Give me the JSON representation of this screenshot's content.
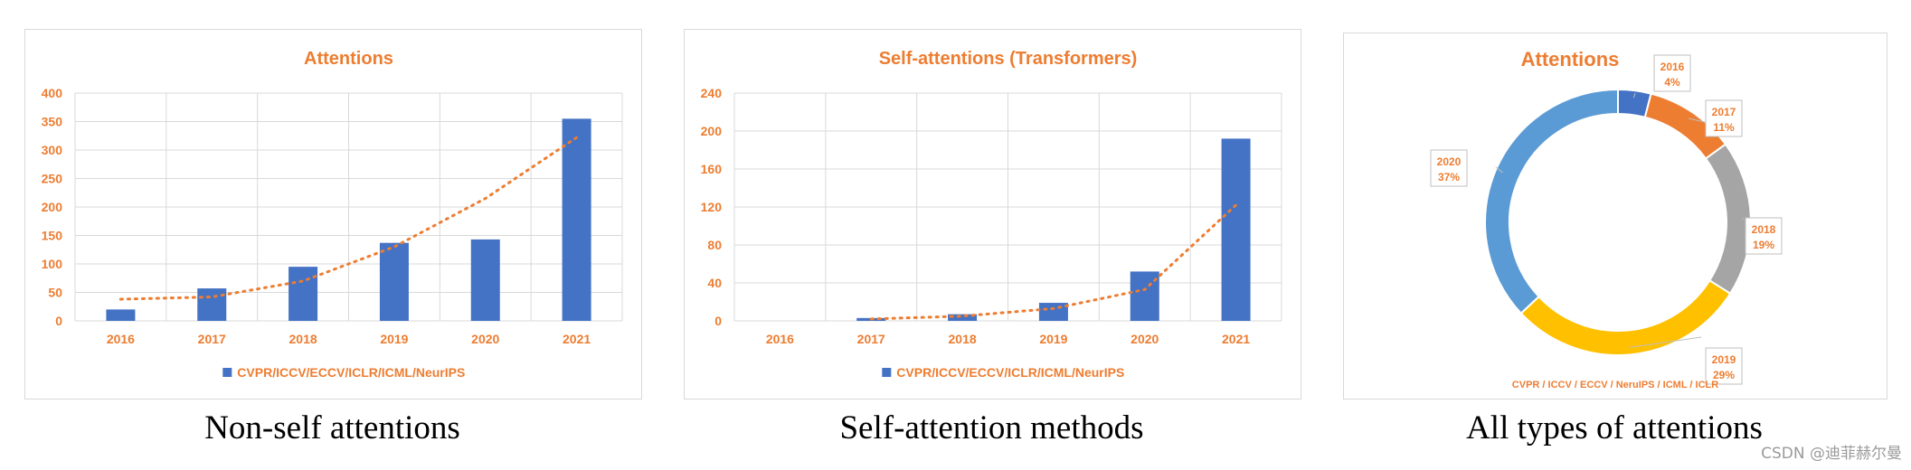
{
  "colors": {
    "accent": "#ED7D31",
    "bar": "#4472C4",
    "grid": "#d9d9d9",
    "label": "#ED7D31"
  },
  "chart_data": [
    {
      "type": "bar",
      "title": "Attentions",
      "categories": [
        "2016",
        "2017",
        "2018",
        "2019",
        "2020",
        "2021"
      ],
      "series": [
        {
          "name": "CVPR/ICCV/ECCV/ICLR/ICML/NeurIPS",
          "values": [
            20,
            57,
            95,
            137,
            143,
            355
          ]
        }
      ],
      "trendline": {
        "type": "polynomial",
        "style": "dotted",
        "values": [
          38,
          42,
          70,
          130,
          215,
          322
        ]
      },
      "yticks": [
        "0",
        "50",
        "100",
        "150",
        "200",
        "250",
        "300",
        "350",
        "400"
      ],
      "ylim": [
        0,
        400
      ],
      "grid": true,
      "legend": "bottom",
      "caption": "Non-self attentions"
    },
    {
      "type": "bar",
      "title": "Self-attentions (Transformers)",
      "categories": [
        "2016",
        "2017",
        "2018",
        "2019",
        "2020",
        "2021"
      ],
      "series": [
        {
          "name": "CVPR/ICCV/ECCV/ICLR/ICML/NeurIPS",
          "values": [
            0,
            3,
            7,
            19,
            52,
            192
          ]
        }
      ],
      "trendline": {
        "type": "polynomial",
        "style": "dotted",
        "values": [
          null,
          2,
          5,
          13,
          33,
          122
        ]
      },
      "yticks": [
        "0",
        "40",
        "80",
        "120",
        "160",
        "200",
        "240"
      ],
      "ylim": [
        0,
        240
      ],
      "grid": true,
      "legend": "bottom",
      "caption": "Self-attention methods"
    },
    {
      "type": "pie",
      "title": "Attentions",
      "slices": [
        {
          "year": "2016",
          "pct": 4,
          "label": "4%",
          "color": "#4472C4"
        },
        {
          "year": "2017",
          "pct": 11,
          "label": "11%",
          "color": "#ED7D31"
        },
        {
          "year": "2018",
          "pct": 19,
          "label": "19%",
          "color": "#A5A5A5"
        },
        {
          "year": "2019",
          "pct": 29,
          "label": "29%",
          "color": "#FFC000"
        },
        {
          "year": "2020",
          "pct": 37,
          "label": "37%",
          "color": "#5B9BD5"
        }
      ],
      "legend": "CVPR / ICCV / ECCV / NeruIPS / ICML / ICLR",
      "caption": "All types of attentions"
    }
  ],
  "watermark": "CSDN @迪菲赫尔曼"
}
